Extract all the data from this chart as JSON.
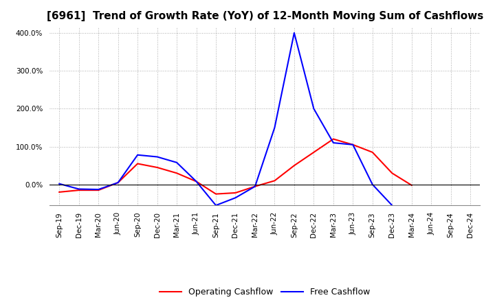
{
  "title": "[6961]  Trend of Growth Rate (YoY) of 12-Month Moving Sum of Cashflows",
  "x_labels": [
    "Sep-19",
    "Dec-19",
    "Mar-20",
    "Jun-20",
    "Sep-20",
    "Dec-20",
    "Mar-21",
    "Jun-21",
    "Sep-21",
    "Dec-21",
    "Mar-22",
    "Jun-22",
    "Sep-22",
    "Dec-22",
    "Mar-23",
    "Jun-23",
    "Sep-23",
    "Dec-23",
    "Mar-24",
    "Jun-24",
    "Sep-24",
    "Dec-24"
  ],
  "operating_cashflow": [
    -0.2,
    -0.15,
    -0.15,
    0.05,
    0.55,
    0.45,
    0.3,
    0.08,
    -0.25,
    -0.22,
    -0.05,
    0.1,
    0.5,
    0.85,
    1.2,
    1.05,
    0.85,
    0.3,
    -0.02,
    null,
    null,
    null
  ],
  "free_cashflow": [
    0.02,
    -0.12,
    -0.13,
    0.05,
    0.78,
    0.73,
    0.58,
    0.08,
    -0.55,
    -0.35,
    -0.05,
    1.5,
    4.0,
    2.0,
    1.1,
    1.05,
    0.0,
    -0.55,
    null,
    null,
    null,
    null
  ],
  "operating_color": "#FF0000",
  "free_color": "#0000FF",
  "background_color": "#FFFFFF",
  "grid_color": "#AAAAAA",
  "ylim": [
    -0.55,
    4.15
  ],
  "yticks": [
    0.0,
    1.0,
    2.0,
    3.0,
    4.0
  ],
  "legend_labels": [
    "Operating Cashflow",
    "Free Cashflow"
  ],
  "title_fontsize": 11,
  "tick_fontsize": 7.5,
  "legend_fontsize": 9
}
